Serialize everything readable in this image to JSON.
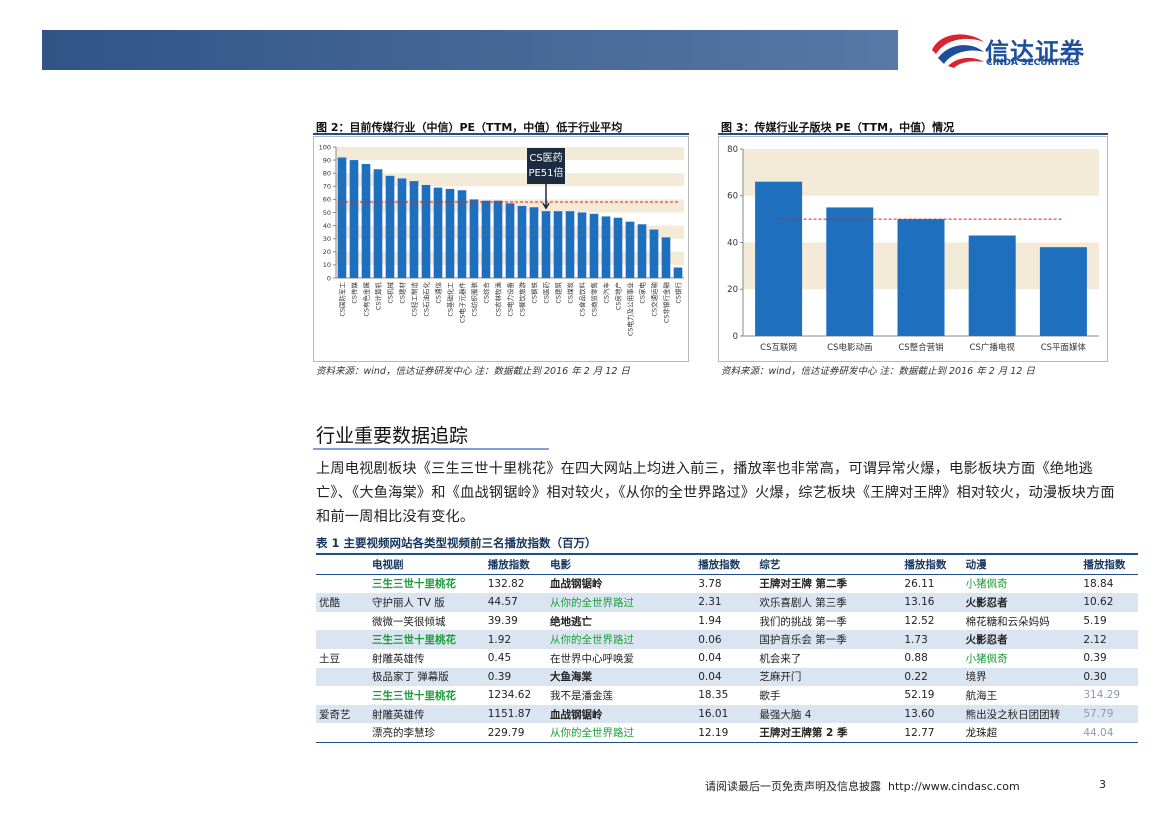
{
  "header": {
    "logo_cn": "信达证券",
    "logo_en": "CINDA SECURITIES"
  },
  "figures": [
    {
      "title": "图 2：目前传媒行业（中信）PE（TTM，中值）低于行业平均",
      "source": "资料来源：wind，信达证券研发中心    注：数据截止到 2016 年 2 月 12 日",
      "chart_data": {
        "type": "bar",
        "categories": [
          "CS国防军工",
          "CS传媒",
          "CS有色金属",
          "CS计算机",
          "CS机械",
          "CS建材",
          "CS轻工制造",
          "CS石油石化",
          "CS通信",
          "CS基础化工",
          "CS电子元器件",
          "CS纺织服装",
          "CS综合",
          "CS农林牧渔",
          "CS电力设备",
          "CS餐饮旅游",
          "CS钢铁",
          "CS医药",
          "CS建筑",
          "CS煤炭",
          "CS食品饮料",
          "CS商贸零售",
          "CS汽车",
          "CS房地产",
          "CS电力及公用事业",
          "CS家电",
          "CS交通运输",
          "CS非银行金融",
          "CS银行"
        ],
        "values": [
          92,
          90,
          87,
          83,
          78,
          76,
          74,
          71,
          69,
          68,
          67,
          60,
          59,
          59,
          57,
          55,
          54,
          51,
          51,
          51,
          50,
          49,
          47,
          46,
          43,
          41,
          37,
          31,
          8
        ],
        "color": "#1f6fbf",
        "ylim": [
          0,
          100
        ],
        "yticks": [
          0,
          10,
          20,
          30,
          40,
          50,
          60,
          70,
          80,
          90,
          100
        ],
        "reference_line": 58,
        "reference_color": "#e0201b",
        "annotation": [
          "CS医药",
          "PE51倍"
        ]
      }
    },
    {
      "title": "图 3：传媒行业子版块 PE（TTM，中值）情况",
      "source": "资料来源：wind，信达证券研发中心    注：数据截止到 2016 年 2 月 12 日",
      "chart_data": {
        "type": "bar",
        "categories": [
          "CS互联网",
          "CS电影动画",
          "CS整合营销",
          "CS广播电视",
          "CS平面媒体"
        ],
        "values": [
          66,
          55,
          50,
          43,
          38
        ],
        "color": "#1f6fbf",
        "ylim": [
          0,
          80
        ],
        "yticks": [
          0,
          20,
          40,
          60,
          80
        ],
        "reference_line": 50,
        "reference_color": "#e0201b"
      }
    }
  ],
  "section_title": "行业重要数据追踪",
  "paragraph": "上周电视剧板块《三生三世十里桃花》在四大网站上均进入前三，播放率也非常高，可谓异常火爆，电影板块方面《绝地逃亡》、《大鱼海棠》和《血战钢锯岭》相对较火，《从你的全世界路过》火爆，综艺板块《王牌对王牌》相对较火，动漫板块方面和前一周相比没有变化。",
  "table": {
    "title": "表 1 主要视频网站各类型视频前三名播放指数（百万）",
    "columns": [
      "电视剧",
      "播放指数",
      "电影",
      "播放指数",
      "综艺",
      "播放指数",
      "动漫",
      "播放指数"
    ],
    "groups": [
      {
        "platform": "优酷",
        "rows": [
          [
            "三生三世十里桃花",
            "132.82",
            "血战钢锯岭",
            "3.78",
            "王牌对王牌 第二季",
            "26.11",
            "小猪佩奇",
            "18.84"
          ],
          [
            "守护丽人 TV 版",
            "44.57",
            "从你的全世界路过",
            "2.31",
            "欢乐喜剧人 第三季",
            "13.16",
            "火影忍者",
            "10.62"
          ],
          [
            "微微一笑很倾城",
            "39.39",
            "绝地逃亡",
            "1.94",
            "我们的挑战 第一季",
            "12.52",
            "棉花糖和云朵妈妈",
            "5.19"
          ]
        ]
      },
      {
        "platform": "土豆",
        "rows": [
          [
            "三生三世十里桃花",
            "1.92",
            "从你的全世界路过",
            "0.06",
            "国护音乐会 第一季",
            "1.73",
            "火影忍者",
            "2.12"
          ],
          [
            "射雕英雄传",
            "0.45",
            "在世界中心呼唤爱",
            "0.04",
            "机会来了",
            "0.88",
            "小猪佩奇",
            "0.39"
          ],
          [
            "极品家丁 弹幕版",
            "0.39",
            "大鱼海棠",
            "0.04",
            "芝麻开门",
            "0.22",
            "境界",
            "0.30"
          ]
        ]
      },
      {
        "platform": "爱奇艺",
        "rows": [
          [
            "三生三世十里桃花",
            "1234.62",
            "我不是潘金莲",
            "18.35",
            "歌手",
            "52.19",
            "航海王",
            "314.29"
          ],
          [
            "射雕英雄传",
            "1151.87",
            "血战钢锯岭",
            "16.01",
            "最强大脑 4",
            "13.60",
            "熊出没之秋日团团转",
            "57.79"
          ],
          [
            "漂亮的李慧珍",
            "229.79",
            "从你的全世界路过",
            "12.19",
            "王牌对王牌第 2 季",
            "12.77",
            "龙珠超",
            "44.04"
          ]
        ]
      }
    ]
  },
  "footer": {
    "disclaimer": "请阅读最后一页免责声明及信息披露",
    "url": "http://www.cindasc.com",
    "page": 3
  }
}
